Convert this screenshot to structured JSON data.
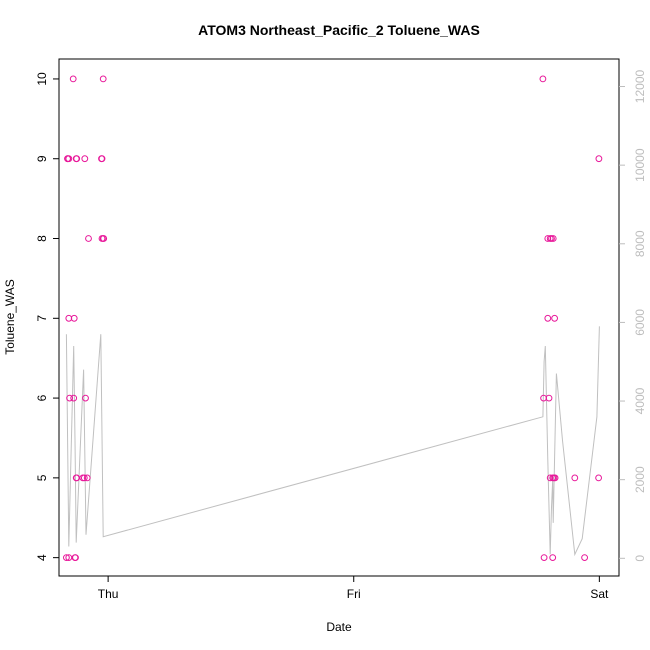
{
  "chart_data": {
    "type": "scatter",
    "title": "ATOM3 Northeast_Pacific_2 Toluene_WAS",
    "xlabel": "Date",
    "ylabel": "Toluene_WAS",
    "x_ticks": [
      "Thu",
      "Fri",
      "Sat"
    ],
    "x_range_days": [
      -0.2,
      2.08
    ],
    "ylim": [
      3.77,
      10.25
    ],
    "y_ticks": [
      4,
      5,
      6,
      7,
      8,
      9,
      10
    ],
    "y2lim": [
      -450,
      12700
    ],
    "y2_ticks": [
      0,
      2000,
      4000,
      6000,
      8000,
      10000,
      12000
    ],
    "grid": false,
    "colors": {
      "points": "#e8189a",
      "line": "#c0c0c0",
      "right_axis": "#bdbdbd"
    },
    "series": [
      {
        "type": "scatter",
        "x_day": [
          -0.17,
          -0.165,
          -0.165,
          -0.16,
          -0.157,
          -0.16,
          -0.16,
          -0.142,
          -0.138,
          -0.14,
          -0.135,
          -0.133,
          -0.13,
          -0.13,
          -0.128,
          -0.128,
          -0.103,
          -0.097,
          -0.095,
          -0.092,
          -0.085,
          -0.08,
          -0.027,
          -0.025,
          -0.025,
          -0.02,
          -0.02,
          -0.018,
          1.77,
          1.773,
          1.775,
          1.79,
          1.79,
          1.795,
          1.8,
          1.8,
          1.805,
          1.81,
          1.81,
          1.812,
          1.815,
          1.818,
          1.82,
          1.9,
          1.94,
          1.997,
          1.998
        ],
        "y": [
          4,
          9,
          9,
          7,
          6,
          4,
          9,
          10,
          7,
          6,
          4,
          4,
          5,
          9,
          9,
          5,
          5,
          5,
          9,
          6,
          5,
          8,
          9,
          9,
          8,
          8,
          10,
          8,
          10,
          6,
          4,
          8,
          7,
          6,
          5,
          8,
          8,
          5,
          4,
          8,
          5,
          7,
          5,
          5,
          4,
          5,
          9
        ]
      },
      {
        "type": "line",
        "axis": "right",
        "x_day": [
          -0.17,
          -0.16,
          -0.14,
          -0.135,
          -0.13,
          -0.1,
          -0.09,
          -0.03,
          -0.02,
          1.77,
          1.775,
          1.78,
          1.79,
          1.8,
          1.805,
          1.81,
          1.812,
          1.825,
          1.85,
          1.9,
          1.93,
          1.99,
          2.0
        ],
        "y2": [
          5700,
          300,
          5400,
          3000,
          400,
          4800,
          600,
          5700,
          550,
          3600,
          5000,
          5400,
          2500,
          100,
          1300,
          2000,
          900,
          4700,
          3000,
          100,
          500,
          3600,
          5900
        ]
      }
    ]
  }
}
